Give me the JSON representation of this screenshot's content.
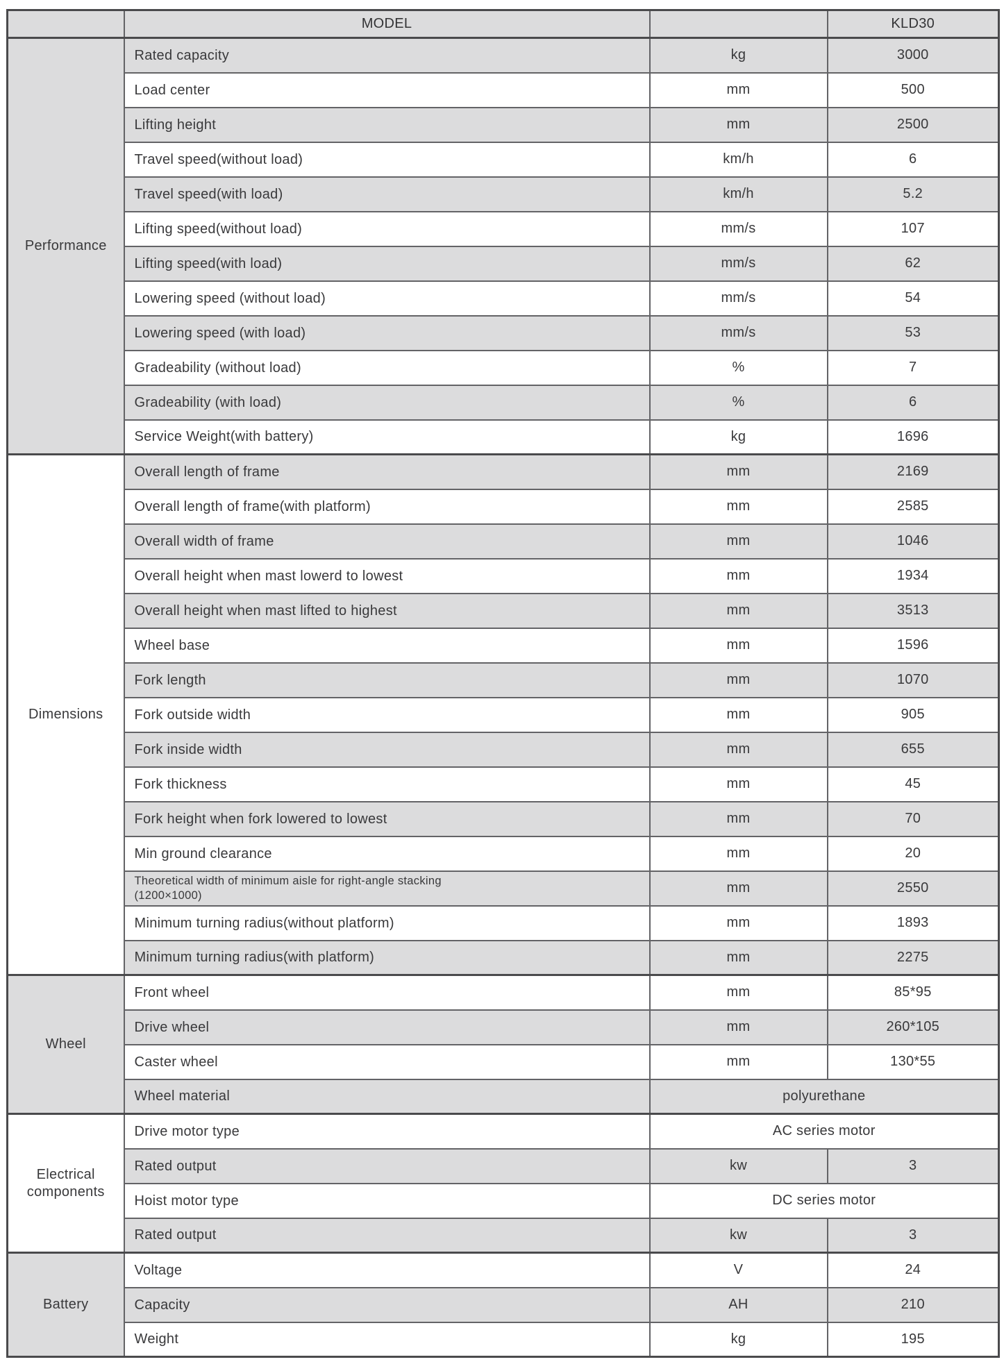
{
  "colors": {
    "row_gray": "#dcdcdd",
    "row_white": "#ffffff",
    "border_inner": "#636366",
    "border_heavy": "#4a4a4c",
    "text": "#39393b"
  },
  "header": {
    "corner": "",
    "model_label": "MODEL",
    "unit_blank": "",
    "model_value": "KLD30"
  },
  "sections": [
    {
      "name": "Performance",
      "rows": [
        {
          "label": "Rated capacity",
          "unit": "kg",
          "value": "3000"
        },
        {
          "label": "Load center",
          "unit": "mm",
          "value": "500"
        },
        {
          "label": "Lifting height",
          "unit": "mm",
          "value": "2500"
        },
        {
          "label": "Travel speed(without load)",
          "unit": "km/h",
          "value": "6"
        },
        {
          "label": "Travel speed(with load)",
          "unit": "km/h",
          "value": "5.2"
        },
        {
          "label": "Lifting speed(without load)",
          "unit": "mm/s",
          "value": "107"
        },
        {
          "label": "Lifting speed(with load)",
          "unit": "mm/s",
          "value": "62"
        },
        {
          "label": "Lowering speed (without load)",
          "unit": "mm/s",
          "value": "54"
        },
        {
          "label": "Lowering speed (with load)",
          "unit": "mm/s",
          "value": "53"
        },
        {
          "label": "Gradeability (without load)",
          "unit": "%",
          "value": "7"
        },
        {
          "label": "Gradeability (with load)",
          "unit": "%",
          "value": "6"
        },
        {
          "label": "Service Weight(with battery)",
          "unit": "kg",
          "value": "1696"
        }
      ]
    },
    {
      "name": "Dimensions",
      "rows": [
        {
          "label": "Overall length of frame",
          "unit": "mm",
          "value": "2169"
        },
        {
          "label": "Overall length of frame(with platform)",
          "unit": "mm",
          "value": "2585"
        },
        {
          "label": "Overall width of frame",
          "unit": "mm",
          "value": "1046"
        },
        {
          "label": "Overall height when mast lowerd to lowest",
          "unit": "mm",
          "value": "1934"
        },
        {
          "label": "Overall height when mast lifted to highest",
          "unit": "mm",
          "value": "3513"
        },
        {
          "label": "Wheel base",
          "unit": "mm",
          "value": "1596"
        },
        {
          "label": "Fork length",
          "unit": "mm",
          "value": "1070"
        },
        {
          "label": "Fork outside width",
          "unit": "mm",
          "value": "905"
        },
        {
          "label": "Fork inside width",
          "unit": "mm",
          "value": "655"
        },
        {
          "label": "Fork thickness",
          "unit": "mm",
          "value": "45"
        },
        {
          "label": "Fork height when fork lowered to lowest",
          "unit": "mm",
          "value": "70"
        },
        {
          "label": "Min ground clearance",
          "unit": "mm",
          "value": "20"
        },
        {
          "label": "Theoretical width of minimum aisle for right-angle stacking\n(1200×1000)",
          "unit": "mm",
          "value": "2550"
        },
        {
          "label": "Minimum turning radius(without platform)",
          "unit": "mm",
          "value": "1893"
        },
        {
          "label": "Minimum turning radius(with platform)",
          "unit": "mm",
          "value": "2275"
        }
      ]
    },
    {
      "name": "Wheel",
      "rows": [
        {
          "label": "Front wheel",
          "unit": "mm",
          "value": "85*95"
        },
        {
          "label": "Drive wheel",
          "unit": "mm",
          "value": "260*105"
        },
        {
          "label": "Caster wheel",
          "unit": "mm",
          "value": "130*55"
        },
        {
          "label": "Wheel material",
          "unit": "",
          "value": "polyurethane",
          "merged": true
        }
      ]
    },
    {
      "name": "Electrical components",
      "rows": [
        {
          "label": "Drive motor type",
          "unit": "",
          "value": "AC series motor",
          "merged": true
        },
        {
          "label": "Rated output",
          "unit": "kw",
          "value": "3"
        },
        {
          "label": "Hoist motor type",
          "unit": "",
          "value": "DC series motor",
          "merged": true
        },
        {
          "label": "Rated output",
          "unit": "kw",
          "value": "3"
        }
      ]
    },
    {
      "name": "Battery",
      "rows": [
        {
          "label": "Voltage",
          "unit": "V",
          "value": "24"
        },
        {
          "label": "Capacity",
          "unit": "AH",
          "value": "210"
        },
        {
          "label": "Weight",
          "unit": "kg",
          "value": "195"
        }
      ]
    }
  ]
}
